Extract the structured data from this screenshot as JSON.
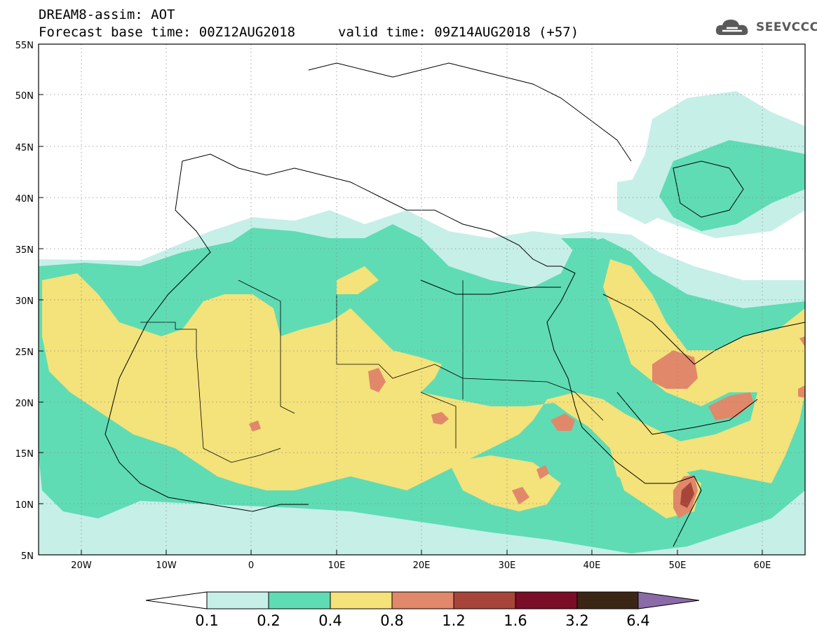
{
  "title": {
    "line1": "DREAM8-assim: AOT",
    "base": "Forecast base time: 00Z12AUG2018",
    "valid": "valid time: 09Z14AUG2018 (+57)"
  },
  "logo": {
    "text": "SEEVCCC",
    "icon": "cloud-icon"
  },
  "map": {
    "variable": "AOT",
    "lon_range": [
      -25,
      65
    ],
    "lat_range": [
      5,
      55
    ],
    "lat_ticks": [
      "5N",
      "10N",
      "15N",
      "20N",
      "25N",
      "30N",
      "35N",
      "40N",
      "45N",
      "50N",
      "55N"
    ],
    "lon_ticks": [
      "20W",
      "10W",
      "0",
      "10E",
      "20E",
      "30E",
      "40E",
      "50E",
      "60E"
    ],
    "gridlines": "dotted"
  },
  "colorbar": {
    "levels": [
      "0.1",
      "0.2",
      "0.4",
      "0.8",
      "1.2",
      "1.6",
      "3.2",
      "6.4"
    ],
    "colors": {
      "0.1-0.2": "#c6efe8",
      "0.2-0.4": "#5fdcb4",
      "0.4-0.8": "#f4e27a",
      "0.8-1.2": "#e1886a",
      "1.2-1.6": "#a8453a",
      "1.6-3.2": "#7a0d28",
      "3.2-6.4": "#3b2616",
      ">6.4": "#8b6aa8"
    }
  }
}
